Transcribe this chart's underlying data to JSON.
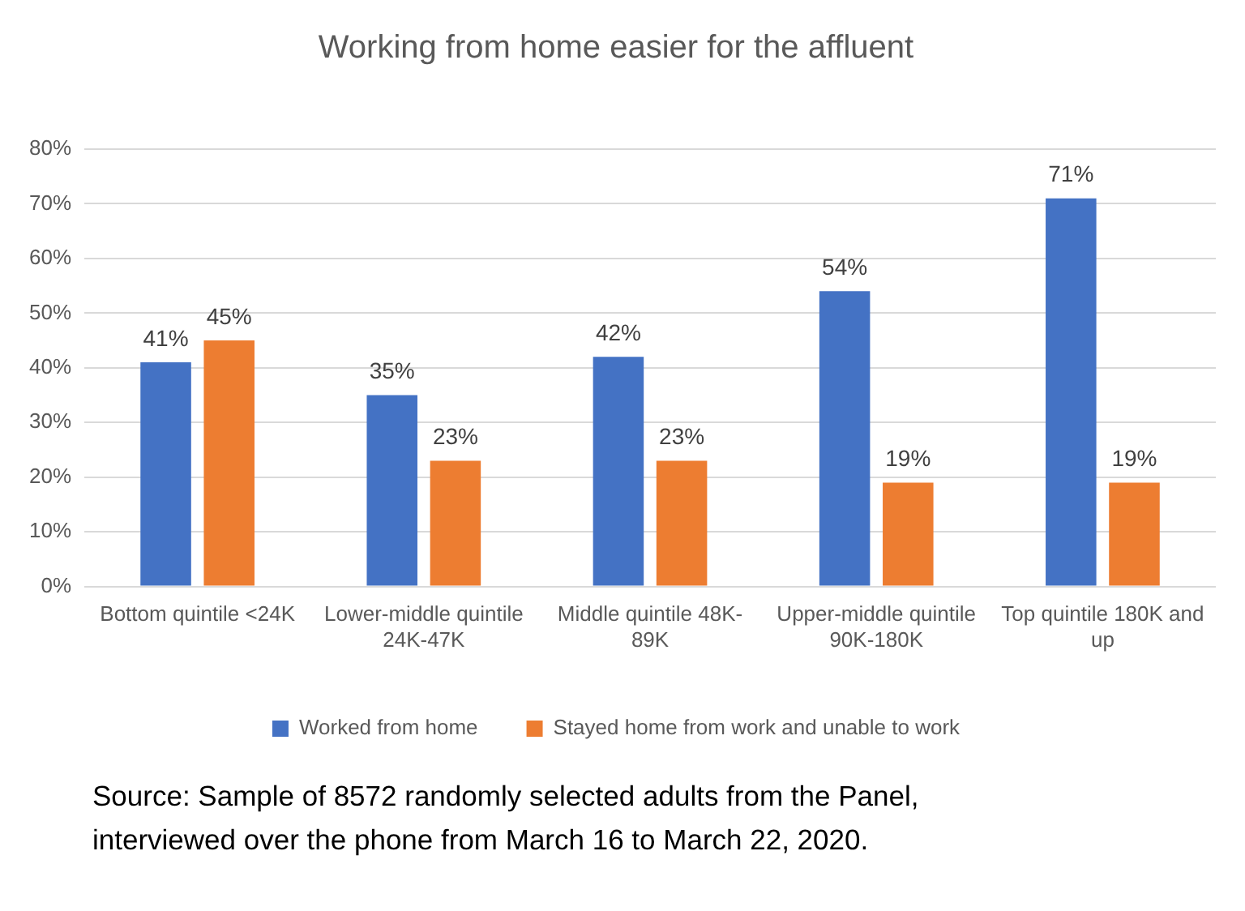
{
  "chart_data": {
    "type": "bar",
    "title": "Working from home easier for the affluent",
    "categories": [
      "Bottom quintile <24K",
      "Lower-middle quintile 24K-47K",
      "Middle quintile 48K-89K",
      "Upper-middle quintile 90K-180K",
      "Top quintile 180K and up"
    ],
    "series": [
      {
        "name": "Worked from home",
        "color": "#4472c4",
        "values": [
          41,
          35,
          42,
          54,
          71
        ],
        "value_labels": [
          "41%",
          "35%",
          "42%",
          "54%",
          "71%"
        ]
      },
      {
        "name": "Stayed home from work and unable to work",
        "color": "#ed7d31",
        "values": [
          45,
          23,
          23,
          19,
          19
        ],
        "value_labels": [
          "45%",
          "23%",
          "23%",
          "19%",
          "19%"
        ]
      }
    ],
    "ylim": [
      0,
      80
    ],
    "yticks": [
      {
        "value": 0,
        "label": "0%"
      },
      {
        "value": 10,
        "label": "10%"
      },
      {
        "value": 20,
        "label": "20%"
      },
      {
        "value": 30,
        "label": "30%"
      },
      {
        "value": 40,
        "label": "40%"
      },
      {
        "value": 50,
        "label": "50%"
      },
      {
        "value": 60,
        "label": "60%"
      },
      {
        "value": 70,
        "label": "70%"
      },
      {
        "value": 80,
        "label": "80%"
      }
    ],
    "grid": "y",
    "legend": "bottom",
    "annotations": [
      "Source: Sample of 8572 randomly selected adults from the Panel, interviewed over the phone from March 16 to March 22, 2020."
    ]
  }
}
